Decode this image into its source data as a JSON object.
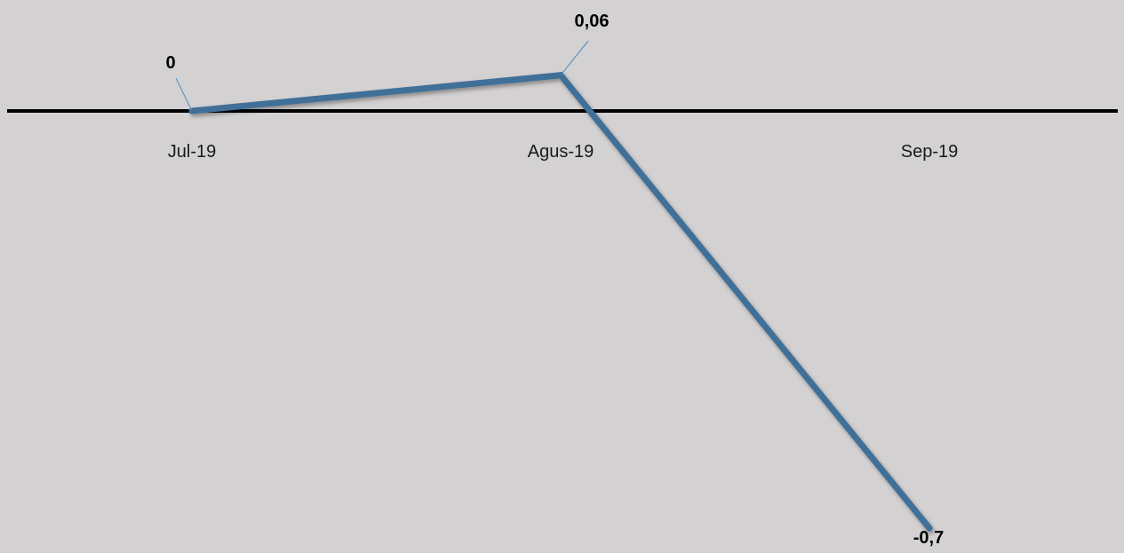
{
  "chart_data": {
    "type": "line",
    "categories": [
      "Jul-19",
      "Agus-19",
      "Sep-19"
    ],
    "series": [
      {
        "values": [
          0,
          0.06,
          -0.7
        ]
      }
    ],
    "data_labels": [
      "0",
      "0,06",
      "-0,7"
    ],
    "title": "",
    "xlabel": "",
    "ylabel": "",
    "ylim": [
      -0.7,
      0.06
    ],
    "grid": false,
    "legend": "none",
    "line_color": "#3f6f98",
    "leader_line_color": "#4a8fc7",
    "axis_color": "#000000",
    "background": "#d4d1d2"
  }
}
